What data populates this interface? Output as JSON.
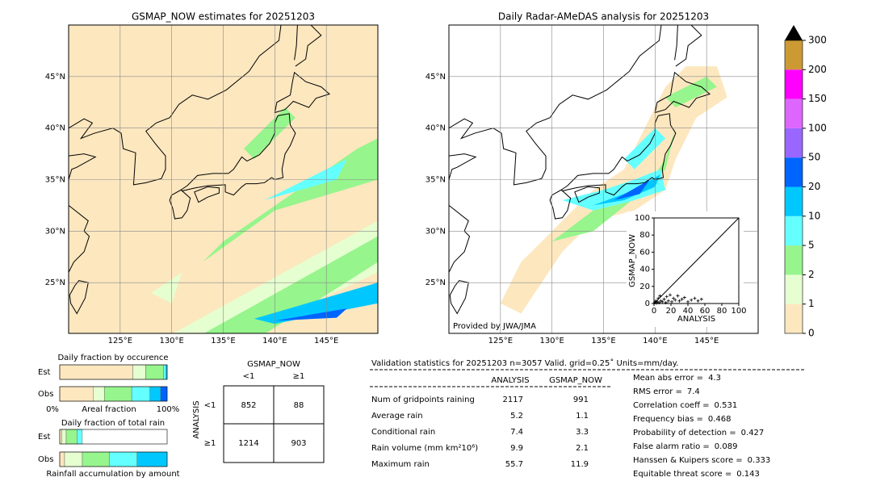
{
  "map_left": {
    "title": "GSMAP_NOW estimates for 20251203",
    "lon_labels": [
      "125°E",
      "130°E",
      "135°E",
      "140°E",
      "145°E"
    ],
    "lat_labels": [
      "45°N",
      "40°N",
      "35°N",
      "30°N",
      "25°N"
    ]
  },
  "map_right": {
    "title": "Daily Radar-AMeDAS analysis for 20251203",
    "credit": "Provided by JWA/JMA",
    "lon_labels": [
      "125°E",
      "130°E",
      "135°E",
      "140°E",
      "145°E"
    ],
    "lat_labels": [
      "45°N",
      "40°N",
      "35°N",
      "30°N",
      "25°N"
    ]
  },
  "scatter": {
    "xlabel": "ANALYSIS",
    "ylabel": "GSMAP_NOW",
    "xlim": [
      0,
      100
    ],
    "ylim": [
      0,
      100
    ],
    "xticks": [
      0,
      20,
      40,
      60,
      80,
      100
    ],
    "yticks": [
      0,
      20,
      40,
      60,
      80,
      100
    ],
    "points": [
      [
        1,
        1
      ],
      [
        2,
        3
      ],
      [
        3,
        0.5
      ],
      [
        4,
        2
      ],
      [
        5,
        6
      ],
      [
        6,
        1
      ],
      [
        7,
        9
      ],
      [
        8,
        3
      ],
      [
        10,
        2
      ],
      [
        12,
        5
      ],
      [
        14,
        1
      ],
      [
        15,
        8
      ],
      [
        17,
        3
      ],
      [
        19,
        10
      ],
      [
        21,
        2
      ],
      [
        23,
        6
      ],
      [
        25,
        4
      ],
      [
        28,
        9
      ],
      [
        30,
        3
      ],
      [
        33,
        5
      ],
      [
        36,
        7
      ],
      [
        40,
        2
      ],
      [
        44,
        4
      ],
      [
        48,
        6
      ],
      [
        52,
        3
      ],
      [
        56,
        5
      ]
    ]
  },
  "colorbar": {
    "ticks": [
      0,
      1,
      2,
      5,
      10,
      20,
      50,
      100,
      150,
      200,
      300
    ],
    "colors": [
      "#fde7bf",
      "#e6ffd0",
      "#96f58c",
      "#64ffff",
      "#00c8ff",
      "#0064ff",
      "#9966ff",
      "#dd66ff",
      "#ff00ff",
      "#cc9933"
    ]
  },
  "occurrence": {
    "title": "Daily fraction by occurence",
    "rows": [
      {
        "name": "Est",
        "values": [
          68,
          12,
          16.5,
          2.5,
          1,
          0
        ]
      },
      {
        "name": "Obs",
        "values": [
          31,
          10.5,
          25.5,
          17,
          10,
          6
        ]
      }
    ],
    "left": "0%",
    "axis": "Areal fraction",
    "right": "100%"
  },
  "total_rain": {
    "title": "Daily fraction of total rain",
    "rows": [
      {
        "name": "Est",
        "values": [
          2,
          4,
          10,
          5,
          0
        ]
      },
      {
        "name": "Obs",
        "values": [
          4.5,
          16.5,
          25,
          26,
          28
        ]
      }
    ],
    "footer": "Rainfall accumulation by amount"
  },
  "contingency": {
    "col_title": "GSMAP_NOW",
    "row_title": "ANALYSIS",
    "cols": [
      "<1",
      "≥1"
    ],
    "rows": [
      "<1",
      "≥1"
    ],
    "cells": [
      [
        852,
        88
      ],
      [
        1214,
        903
      ]
    ]
  },
  "validation": {
    "title": "Validation statistics for 20251203  n=3057 Valid. grid=0.25˚ Units=mm/day.",
    "columns": [
      "ANALYSIS",
      "GSMAP_NOW"
    ],
    "rows": [
      {
        "label": "Num of gridpoints raining",
        "values": [
          2117,
          991
        ]
      },
      {
        "label": "Average rain",
        "values": [
          5.2,
          1.1
        ]
      },
      {
        "label": "Conditional rain",
        "values": [
          7.4,
          3.3
        ]
      },
      {
        "label": "Rain volume (mm km²10⁶)",
        "values": [
          9.9,
          2.1
        ]
      },
      {
        "label": "Maximum rain",
        "values": [
          55.7,
          11.9
        ]
      }
    ],
    "scores": [
      {
        "label": "Mean abs error =",
        "value": 4.3
      },
      {
        "label": "RMS error =",
        "value": 7.4
      },
      {
        "label": "Correlation coeff =",
        "value": 0.531
      },
      {
        "label": "Frequency bias =",
        "value": 0.468
      },
      {
        "label": "Probability of detection =",
        "value": 0.427
      },
      {
        "label": "False alarm ratio =",
        "value": 0.089
      },
      {
        "label": "Hanssen & Kuipers score =",
        "value": 0.333
      },
      {
        "label": "Equitable threat score =",
        "value": 0.143
      }
    ]
  }
}
